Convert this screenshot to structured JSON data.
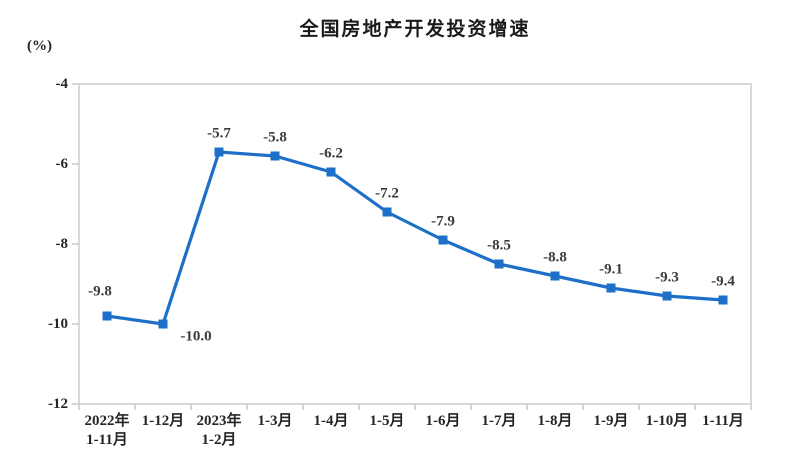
{
  "header": {
    "title": "全国房地产开发投资增速",
    "unit_label": "(%)"
  },
  "colors": {
    "line": "#1E6FC8",
    "marker": "#1E6FC8",
    "frame": "#D9D9D9",
    "tick": "#C9C9C9",
    "title": "#1A1A1A",
    "axis_label": "#262626",
    "data_label": "#3B3B3B",
    "background": "#FFFFFF"
  },
  "chart_data": {
    "type": "line",
    "title": "全国房地产开发投资增速",
    "unit": "(%)",
    "categories": [
      "2022年\n1-11月",
      "1-12月",
      "2023年\n1-2月",
      "1-3月",
      "1-4月",
      "1-5月",
      "1-6月",
      "1-7月",
      "1-8月",
      "1-9月",
      "1-10月",
      "1-11月"
    ],
    "values": [
      -9.8,
      -10.0,
      -5.7,
      -5.8,
      -6.2,
      -7.2,
      -7.9,
      -8.5,
      -8.8,
      -9.1,
      -9.3,
      -9.4
    ],
    "data_labels": [
      "-9.8",
      "-10.0",
      "-5.7",
      "-5.8",
      "-6.2",
      "-7.2",
      "-7.9",
      "-8.5",
      "-8.8",
      "-9.1",
      "-9.3",
      "-9.4"
    ],
    "ylim": [
      -12,
      -4
    ],
    "yticks": [
      -4,
      -6,
      -8,
      -10,
      -12
    ],
    "grid": false,
    "legend": "none",
    "marker": "square",
    "label_default_offset": [
      0,
      -18
    ],
    "label_offsets": {
      "0": [
        -7,
        -24
      ],
      "1": [
        33,
        13
      ]
    }
  }
}
